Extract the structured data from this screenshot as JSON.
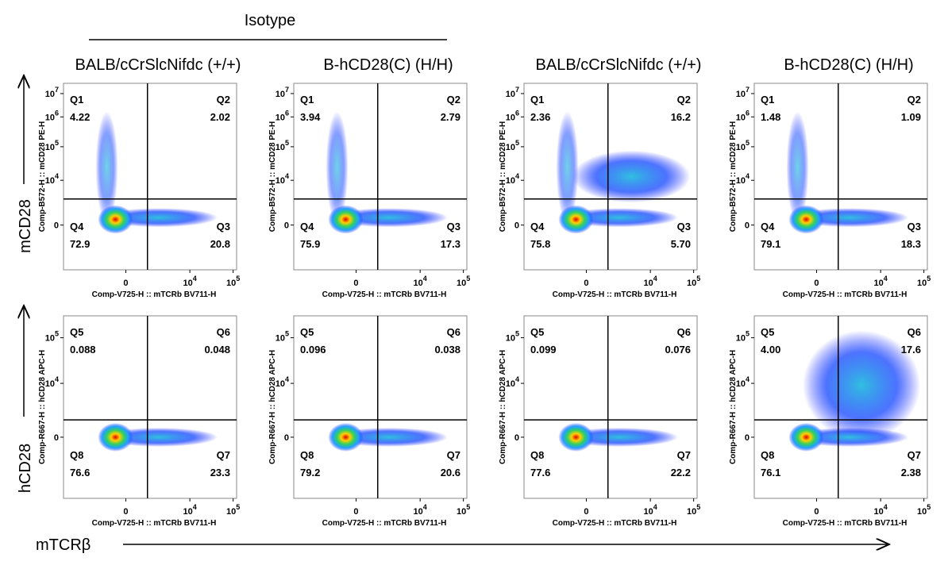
{
  "header": {
    "title": "Isotype"
  },
  "columns": [
    "BALB/cCrSlcNifdc (+/+)",
    "B-hCD28(C) (H/H)",
    "BALB/cCrSlcNifdc (+/+)",
    "B-hCD28(C) (H/H)"
  ],
  "row_labels": [
    "mCD28",
    "hCD28"
  ],
  "x_label": "mTCRβ",
  "rows": [
    {
      "y_axis": "Comp-B572-H :: mCD28 PE-H",
      "x_axis": "Comp-V725-H :: mTCRb BV711-H",
      "y_ticks": [
        {
          "base": "10",
          "exp": "7"
        },
        {
          "base": "10",
          "exp": "6"
        },
        {
          "base": "10",
          "exp": "5"
        },
        {
          "base": "10",
          "exp": "4"
        },
        {
          "base": "0"
        }
      ],
      "x_ticks": [
        {
          "base": "0"
        },
        {
          "base": "10",
          "exp": "4"
        },
        {
          "base": "10",
          "exp": "5"
        }
      ],
      "panels": [
        {
          "quadrants": [
            {
              "name": "Q1",
              "value": "4.22"
            },
            {
              "name": "Q2",
              "value": "2.02"
            },
            {
              "name": "Q4",
              "value": "72.9"
            },
            {
              "name": "Q3",
              "value": "20.8"
            }
          ]
        },
        {
          "quadrants": [
            {
              "name": "Q1",
              "value": "3.94"
            },
            {
              "name": "Q2",
              "value": "2.79"
            },
            {
              "name": "Q4",
              "value": "75.9"
            },
            {
              "name": "Q3",
              "value": "17.3"
            }
          ]
        },
        {
          "quadrants": [
            {
              "name": "Q1",
              "value": "2.36"
            },
            {
              "name": "Q2",
              "value": "16.2"
            },
            {
              "name": "Q4",
              "value": "75.8"
            },
            {
              "name": "Q3",
              "value": "5.70"
            }
          ]
        },
        {
          "quadrants": [
            {
              "name": "Q1",
              "value": "1.48"
            },
            {
              "name": "Q2",
              "value": "1.09"
            },
            {
              "name": "Q4",
              "value": "79.1"
            },
            {
              "name": "Q3",
              "value": "18.3"
            }
          ]
        }
      ]
    },
    {
      "y_axis": "Comp-R667-H :: hCD28 APC-H",
      "x_axis": "Comp-V725-H :: mTCRb BV711-H",
      "y_ticks": [
        {
          "base": "10",
          "exp": "5"
        },
        {
          "base": "10",
          "exp": "4"
        },
        {
          "base": "0"
        }
      ],
      "x_ticks": [
        {
          "base": "0"
        },
        {
          "base": "10",
          "exp": "4"
        },
        {
          "base": "10",
          "exp": "5"
        }
      ],
      "panels": [
        {
          "quadrants": [
            {
              "name": "Q5",
              "value": "0.088"
            },
            {
              "name": "Q6",
              "value": "0.048"
            },
            {
              "name": "Q8",
              "value": "76.6"
            },
            {
              "name": "Q7",
              "value": "23.3"
            }
          ]
        },
        {
          "quadrants": [
            {
              "name": "Q5",
              "value": "0.096"
            },
            {
              "name": "Q6",
              "value": "0.038"
            },
            {
              "name": "Q8",
              "value": "79.2"
            },
            {
              "name": "Q7",
              "value": "20.6"
            }
          ]
        },
        {
          "quadrants": [
            {
              "name": "Q5",
              "value": "0.099"
            },
            {
              "name": "Q6",
              "value": "0.076"
            },
            {
              "name": "Q8",
              "value": "77.6"
            },
            {
              "name": "Q7",
              "value": "22.2"
            }
          ]
        },
        {
          "quadrants": [
            {
              "name": "Q5",
              "value": "4.00"
            },
            {
              "name": "Q6",
              "value": "17.6"
            },
            {
              "name": "Q8",
              "value": "76.1"
            },
            {
              "name": "Q7",
              "value": "2.38"
            }
          ]
        }
      ]
    }
  ]
}
